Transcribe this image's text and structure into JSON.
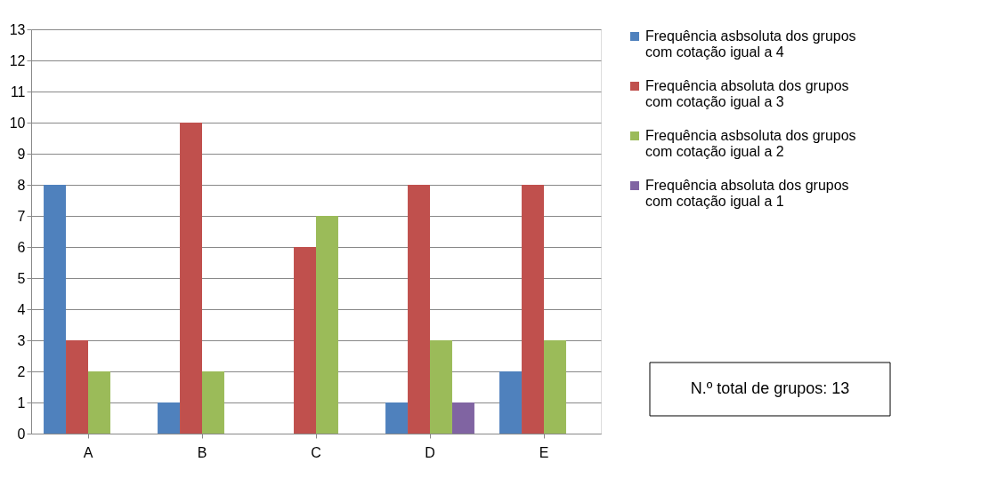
{
  "chart_data": {
    "type": "bar",
    "categories": [
      "A",
      "B",
      "C",
      "D",
      "E"
    ],
    "series": [
      {
        "name": "Frequência asbsoluta dos grupos com cotação igual a 4",
        "color": "#4f81bd",
        "values": [
          8,
          1,
          0,
          1,
          2
        ]
      },
      {
        "name": "Frequência absoluta dos grupos com cotação igual a 3",
        "color": "#c0504d",
        "values": [
          3,
          10,
          6,
          8,
          8
        ]
      },
      {
        "name": "Frequência asbsoluta dos grupos com cotação igual a 2",
        "color": "#9bbb59",
        "values": [
          2,
          2,
          7,
          3,
          3
        ]
      },
      {
        "name": "Frequência absoluta dos grupos com cotação igual a 1",
        "color": "#8064a2",
        "values": [
          0,
          0,
          0,
          1,
          0
        ]
      }
    ],
    "ylim": [
      0,
      13
    ],
    "yticks": [
      0,
      1,
      2,
      3,
      4,
      5,
      6,
      7,
      8,
      9,
      10,
      11,
      12,
      13
    ],
    "grid": "y",
    "legend": "right",
    "annotations": [
      "N.º total de grupos: 13"
    ]
  }
}
